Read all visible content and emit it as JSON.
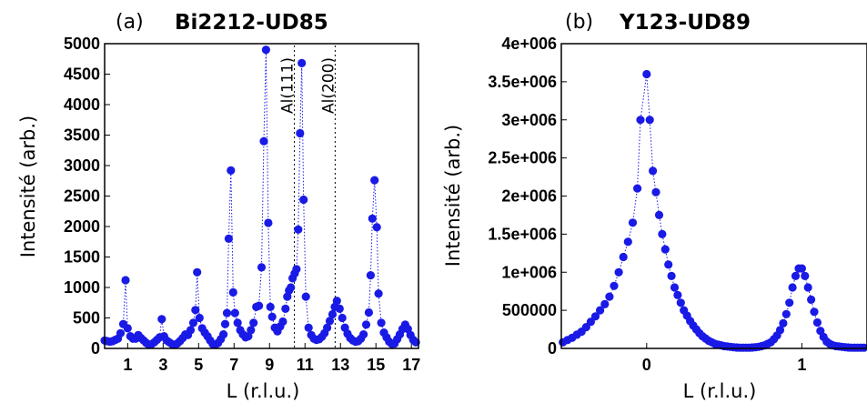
{
  "colors": {
    "series": "#1a1ae6",
    "axes": "#000000",
    "annotation_line": "#000000"
  },
  "chart_data": [
    {
      "type": "scatter",
      "panel_label": "(a)",
      "title": "Bi2212-UD85",
      "xlabel": "L (r.l.u.)",
      "ylabel": "Intensité (arb.)",
      "xlim": [
        -0.3,
        17.4
      ],
      "ylim": [
        0,
        5000
      ],
      "xticks": [
        1,
        3,
        5,
        7,
        9,
        11,
        13,
        15,
        17
      ],
      "xtick_labels": [
        "1",
        "3",
        "5",
        "7",
        "9",
        "11",
        "13",
        "15",
        "17"
      ],
      "yticks": [
        0,
        500,
        1000,
        1500,
        2000,
        2500,
        3000,
        3500,
        4000,
        4500,
        5000
      ],
      "ytick_labels": [
        "0",
        "500",
        "1000",
        "1500",
        "2000",
        "2500",
        "3000",
        "3500",
        "4000",
        "4500",
        "5000"
      ],
      "annotations": [
        {
          "label": "Al(111)",
          "x": 10.4
        },
        {
          "label": "Al(200)",
          "x": 12.7
        }
      ],
      "series": [
        {
          "connected": true,
          "points": [
            [
              -0.3,
              130
            ],
            [
              -0.15,
              120
            ],
            [
              0.0,
              110
            ],
            [
              0.15,
              120
            ],
            [
              0.3,
              140
            ],
            [
              0.45,
              160
            ],
            [
              0.6,
              250
            ],
            [
              0.75,
              400
            ],
            [
              0.88,
              1120
            ],
            [
              1.0,
              330
            ],
            [
              1.15,
              200
            ],
            [
              1.3,
              160
            ],
            [
              1.45,
              160
            ],
            [
              1.6,
              220
            ],
            [
              1.75,
              170
            ],
            [
              1.9,
              130
            ],
            [
              2.05,
              90
            ],
            [
              2.2,
              60
            ],
            [
              2.35,
              70
            ],
            [
              2.5,
              100
            ],
            [
              2.65,
              140
            ],
            [
              2.8,
              180
            ],
            [
              2.92,
              480
            ],
            [
              3.05,
              200
            ],
            [
              3.2,
              130
            ],
            [
              3.35,
              100
            ],
            [
              3.5,
              70
            ],
            [
              3.65,
              60
            ],
            [
              3.8,
              80
            ],
            [
              3.95,
              120
            ],
            [
              4.1,
              170
            ],
            [
              4.25,
              230
            ],
            [
              4.4,
              220
            ],
            [
              4.55,
              300
            ],
            [
              4.7,
              420
            ],
            [
              4.82,
              630
            ],
            [
              4.92,
              1250
            ],
            [
              5.05,
              500
            ],
            [
              5.2,
              330
            ],
            [
              5.35,
              260
            ],
            [
              5.5,
              200
            ],
            [
              5.65,
              130
            ],
            [
              5.8,
              70
            ],
            [
              5.95,
              60
            ],
            [
              6.1,
              90
            ],
            [
              6.25,
              150
            ],
            [
              6.4,
              230
            ],
            [
              6.5,
              400
            ],
            [
              6.6,
              580
            ],
            [
              6.7,
              1800
            ],
            [
              6.82,
              2920
            ],
            [
              6.95,
              920
            ],
            [
              7.05,
              580
            ],
            [
              7.2,
              420
            ],
            [
              7.35,
              300
            ],
            [
              7.5,
              230
            ],
            [
              7.65,
              180
            ],
            [
              7.8,
              200
            ],
            [
              7.95,
              300
            ],
            [
              8.1,
              420
            ],
            [
              8.25,
              680
            ],
            [
              8.4,
              700
            ],
            [
              8.55,
              1330
            ],
            [
              8.68,
              3400
            ],
            [
              8.8,
              4900
            ],
            [
              8.93,
              2060
            ],
            [
              9.05,
              680
            ],
            [
              9.15,
              520
            ],
            [
              9.3,
              340
            ],
            [
              9.45,
              280
            ],
            [
              9.6,
              360
            ],
            [
              9.75,
              440
            ],
            [
              9.9,
              650
            ],
            [
              10.0,
              850
            ],
            [
              10.1,
              950
            ],
            [
              10.2,
              1000
            ],
            [
              10.3,
              1150
            ],
            [
              10.42,
              1230
            ],
            [
              10.52,
              1300
            ],
            [
              10.62,
              1950
            ],
            [
              10.72,
              3530
            ],
            [
              10.82,
              4680
            ],
            [
              10.92,
              2440
            ],
            [
              11.05,
              850
            ],
            [
              11.2,
              340
            ],
            [
              11.35,
              220
            ],
            [
              11.5,
              160
            ],
            [
              11.65,
              140
            ],
            [
              11.8,
              150
            ],
            [
              11.95,
              190
            ],
            [
              12.1,
              250
            ],
            [
              12.25,
              340
            ],
            [
              12.4,
              450
            ],
            [
              12.55,
              560
            ],
            [
              12.68,
              680
            ],
            [
              12.8,
              780
            ],
            [
              12.95,
              650
            ],
            [
              13.1,
              500
            ],
            [
              13.25,
              340
            ],
            [
              13.4,
              240
            ],
            [
              13.55,
              170
            ],
            [
              13.7,
              130
            ],
            [
              13.85,
              110
            ],
            [
              14.0,
              120
            ],
            [
              14.15,
              160
            ],
            [
              14.3,
              230
            ],
            [
              14.45,
              390
            ],
            [
              14.6,
              590
            ],
            [
              14.7,
              1200
            ],
            [
              14.8,
              2130
            ],
            [
              14.92,
              2760
            ],
            [
              15.05,
              1990
            ],
            [
              15.15,
              900
            ],
            [
              15.3,
              420
            ],
            [
              15.45,
              260
            ],
            [
              15.6,
              180
            ],
            [
              15.75,
              110
            ],
            [
              15.9,
              70
            ],
            [
              16.05,
              80
            ],
            [
              16.2,
              150
            ],
            [
              16.35,
              230
            ],
            [
              16.5,
              320
            ],
            [
              16.65,
              390
            ],
            [
              16.8,
              320
            ],
            [
              16.95,
              220
            ],
            [
              17.1,
              140
            ],
            [
              17.25,
              100
            ]
          ]
        }
      ]
    },
    {
      "type": "scatter",
      "panel_label": "(b)",
      "title": "Y123-UD89",
      "xlabel": "L (r.l.u.)",
      "ylabel": "Intensité (arb.)",
      "xlim": [
        -0.55,
        1.42
      ],
      "ylim": [
        0,
        4000000
      ],
      "xticks": [
        0,
        1
      ],
      "xtick_labels": [
        "0",
        "1"
      ],
      "yticks": [
        0,
        500000,
        1000000,
        1500000,
        2000000,
        2500000,
        3000000,
        3500000,
        4000000
      ],
      "ytick_labels": [
        "0",
        "500000",
        "1e+006",
        "1.5e+006",
        "2e+006",
        "2.5e+006",
        "3e+006",
        "3.5e+006",
        "4e+006"
      ],
      "series": [
        {
          "connected": true,
          "points": [
            [
              -0.54,
              80000
            ],
            [
              -0.51,
              110000
            ],
            [
              -0.48,
              140000
            ],
            [
              -0.45,
              180000
            ],
            [
              -0.42,
              220000
            ],
            [
              -0.39,
              280000
            ],
            [
              -0.36,
              350000
            ],
            [
              -0.33,
              420000
            ],
            [
              -0.3,
              500000
            ],
            [
              -0.27,
              580000
            ],
            [
              -0.24,
              680000
            ],
            [
              -0.21,
              820000
            ],
            [
              -0.18,
              1000000
            ],
            [
              -0.15,
              1200000
            ],
            [
              -0.12,
              1400000
            ],
            [
              -0.09,
              1650000
            ],
            [
              -0.06,
              2100000
            ],
            [
              -0.04,
              3000000
            ],
            [
              0.0,
              3600000
            ],
            [
              0.02,
              3000000
            ],
            [
              0.04,
              2330000
            ],
            [
              0.06,
              2050000
            ],
            [
              0.08,
              1750000
            ],
            [
              0.1,
              1500000
            ],
            [
              0.12,
              1300000
            ],
            [
              0.14,
              1100000
            ],
            [
              0.16,
              950000
            ],
            [
              0.18,
              800000
            ],
            [
              0.2,
              700000
            ],
            [
              0.22,
              600000
            ],
            [
              0.24,
              500000
            ],
            [
              0.26,
              430000
            ],
            [
              0.28,
              360000
            ],
            [
              0.3,
              300000
            ],
            [
              0.32,
              250000
            ],
            [
              0.34,
              200000
            ],
            [
              0.36,
              160000
            ],
            [
              0.38,
              130000
            ],
            [
              0.4,
              100000
            ],
            [
              0.42,
              80000
            ],
            [
              0.44,
              60000
            ],
            [
              0.46,
              50000
            ],
            [
              0.48,
              40000
            ],
            [
              0.5,
              30000
            ],
            [
              0.52,
              25000
            ],
            [
              0.54,
              20000
            ],
            [
              0.56,
              15000
            ],
            [
              0.58,
              12000
            ],
            [
              0.6,
              10000
            ],
            [
              0.62,
              10000
            ],
            [
              0.64,
              10000
            ],
            [
              0.66,
              10000
            ],
            [
              0.68,
              12000
            ],
            [
              0.7,
              15000
            ],
            [
              0.72,
              20000
            ],
            [
              0.74,
              30000
            ],
            [
              0.76,
              40000
            ],
            [
              0.78,
              60000
            ],
            [
              0.8,
              80000
            ],
            [
              0.82,
              120000
            ],
            [
              0.84,
              170000
            ],
            [
              0.86,
              240000
            ],
            [
              0.88,
              330000
            ],
            [
              0.9,
              450000
            ],
            [
              0.92,
              600000
            ],
            [
              0.94,
              800000
            ],
            [
              0.96,
              950000
            ],
            [
              0.98,
              1050000
            ],
            [
              1.0,
              1050000
            ],
            [
              1.02,
              950000
            ],
            [
              1.04,
              800000
            ],
            [
              1.06,
              640000
            ],
            [
              1.08,
              480000
            ],
            [
              1.1,
              340000
            ],
            [
              1.12,
              230000
            ],
            [
              1.14,
              150000
            ],
            [
              1.16,
              90000
            ],
            [
              1.18,
              60000
            ],
            [
              1.2,
              40000
            ],
            [
              1.22,
              30000
            ],
            [
              1.24,
              25000
            ],
            [
              1.26,
              20000
            ],
            [
              1.28,
              15000
            ],
            [
              1.3,
              12000
            ],
            [
              1.32,
              10000
            ],
            [
              1.34,
              10000
            ],
            [
              1.36,
              10000
            ],
            [
              1.38,
              10000
            ],
            [
              1.4,
              10000
            ]
          ]
        }
      ]
    }
  ]
}
